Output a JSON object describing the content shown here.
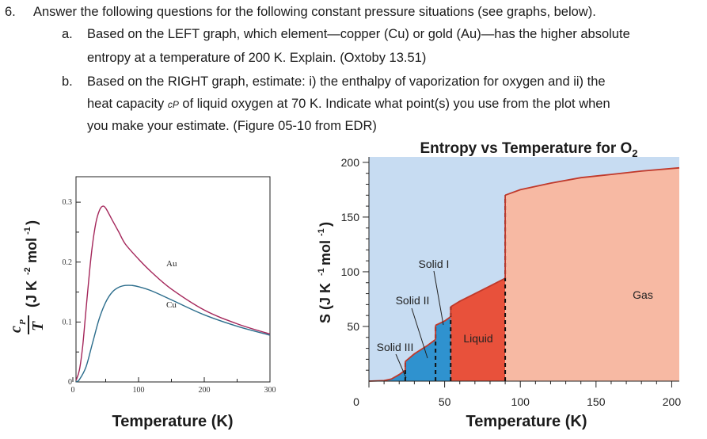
{
  "question": {
    "number": "6.",
    "text": "Answer the following questions for the following constant pressure situations (see graphs, below).",
    "a": {
      "label": "a.",
      "line1": "Based on the LEFT graph, which element—copper (Cu) or gold (Au)—has the higher absolute",
      "line2": "entropy at a temperature of 200 K. Explain. (Oxtoby 13.51)"
    },
    "b": {
      "label": "b.",
      "line1": "Based on the RIGHT graph, estimate: i) the enthalpy of vaporization for oxygen and ii) the",
      "line2_pre": "heat capacity ",
      "line2_var": "cP",
      "line2_post": " of liquid oxygen at 70 K. Indicate what point(s) you use from the plot when",
      "line3": "you make your estimate. (Figure 05-10 from EDR)"
    }
  },
  "chart_data": [
    {
      "type": "line",
      "title": "",
      "xlabel": "Temperature (K)",
      "ylabel": "cP/T (J K-2 mol-1)",
      "xlim": [
        0,
        300
      ],
      "ylim": [
        0,
        0.32
      ],
      "x_ticks": [
        "0",
        "100",
        "200",
        "300"
      ],
      "y_ticks": [
        "0",
        "0.1",
        "0.2",
        "0.3"
      ],
      "series": [
        {
          "name": "Au",
          "color": "#a4265a",
          "x": [
            5,
            10,
            15,
            20,
            25,
            30,
            35,
            40,
            45,
            50,
            60,
            70,
            80,
            100,
            120,
            150,
            200,
            250,
            300
          ],
          "y": [
            0.003,
            0.02,
            0.06,
            0.12,
            0.18,
            0.23,
            0.265,
            0.285,
            0.293,
            0.29,
            0.27,
            0.25,
            0.23,
            0.205,
            0.183,
            0.155,
            0.12,
            0.097,
            0.08
          ]
        },
        {
          "name": "Cu",
          "color": "#2c6d8c",
          "x": [
            5,
            10,
            20,
            30,
            40,
            50,
            60,
            70,
            80,
            90,
            100,
            120,
            150,
            200,
            250,
            300
          ],
          "y": [
            0.0,
            0.004,
            0.025,
            0.065,
            0.105,
            0.133,
            0.15,
            0.158,
            0.161,
            0.161,
            0.159,
            0.152,
            0.137,
            0.112,
            0.093,
            0.078
          ]
        }
      ]
    },
    {
      "type": "area",
      "title": "Entropy vs Temperature for O",
      "title_sub": "2",
      "xlabel": "Temperature (K)",
      "ylabel": "S (J K-1 mol-1)",
      "xlim": [
        0,
        205
      ],
      "ylim": [
        0,
        205
      ],
      "x_ticks": [
        "0",
        "50",
        "100",
        "150",
        "200"
      ],
      "y_ticks": [
        "50",
        "100",
        "150",
        "200"
      ],
      "transitions": [
        24,
        44,
        54,
        90
      ],
      "regions": [
        {
          "name": "Solid III",
          "color": "#2f92cf",
          "x": [
            0,
            10,
            15,
            20,
            24
          ],
          "y": [
            0,
            0.5,
            2,
            6,
            10
          ]
        },
        {
          "name": "Solid II",
          "color": "#2f92cf",
          "x": [
            24,
            30,
            38,
            44
          ],
          "y": [
            18,
            25,
            32,
            38
          ]
        },
        {
          "name": "Solid I",
          "color": "#2f92cf",
          "x": [
            44,
            50,
            54
          ],
          "y": [
            51,
            55,
            59
          ]
        },
        {
          "name": "Liquid",
          "color": "#e8513b",
          "x": [
            54,
            60,
            70,
            80,
            90
          ],
          "y": [
            68,
            73,
            80,
            87,
            94
          ]
        },
        {
          "name": "Gas",
          "color": "#f7b9a3",
          "x": [
            90,
            100,
            120,
            140,
            160,
            180,
            205
          ],
          "y": [
            170,
            175,
            181,
            186,
            189,
            192,
            195
          ]
        }
      ],
      "labels": {
        "gas": "Gas",
        "liquid": "Liquid",
        "solid1": "Solid I",
        "solid2": "Solid II",
        "solid3": "Solid III"
      }
    }
  ]
}
